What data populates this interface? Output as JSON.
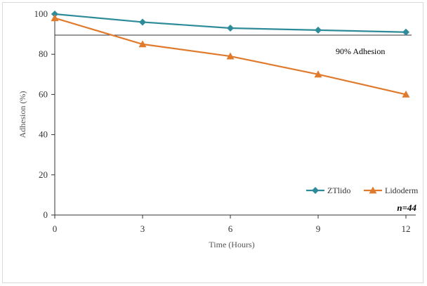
{
  "chart_data": {
    "type": "line",
    "title": "",
    "xlabel": "Time (Hours)",
    "ylabel": "Adhesion (%)",
    "x": [
      0,
      3,
      6,
      9,
      12
    ],
    "xlim": [
      0,
      12
    ],
    "ylim": [
      0,
      100
    ],
    "xticks": [
      "0",
      "3",
      "6",
      "9",
      "12"
    ],
    "yticks": [
      "0",
      "20",
      "40",
      "60",
      "80",
      "100"
    ],
    "series": [
      {
        "name": "ZTlido",
        "color": "#2e8b9a",
        "marker": "diamond",
        "values": [
          100,
          96,
          93,
          92,
          91
        ]
      },
      {
        "name": "Lidoderm",
        "color": "#e07b2e",
        "marker": "triangle",
        "values": [
          98,
          85,
          79,
          70,
          60
        ]
      }
    ],
    "reference_line": {
      "y": 89.5,
      "label": "90% Adhesion",
      "color": "#333333"
    },
    "annotation": "n=44",
    "grid": false,
    "legend_position": "bottom-right"
  }
}
